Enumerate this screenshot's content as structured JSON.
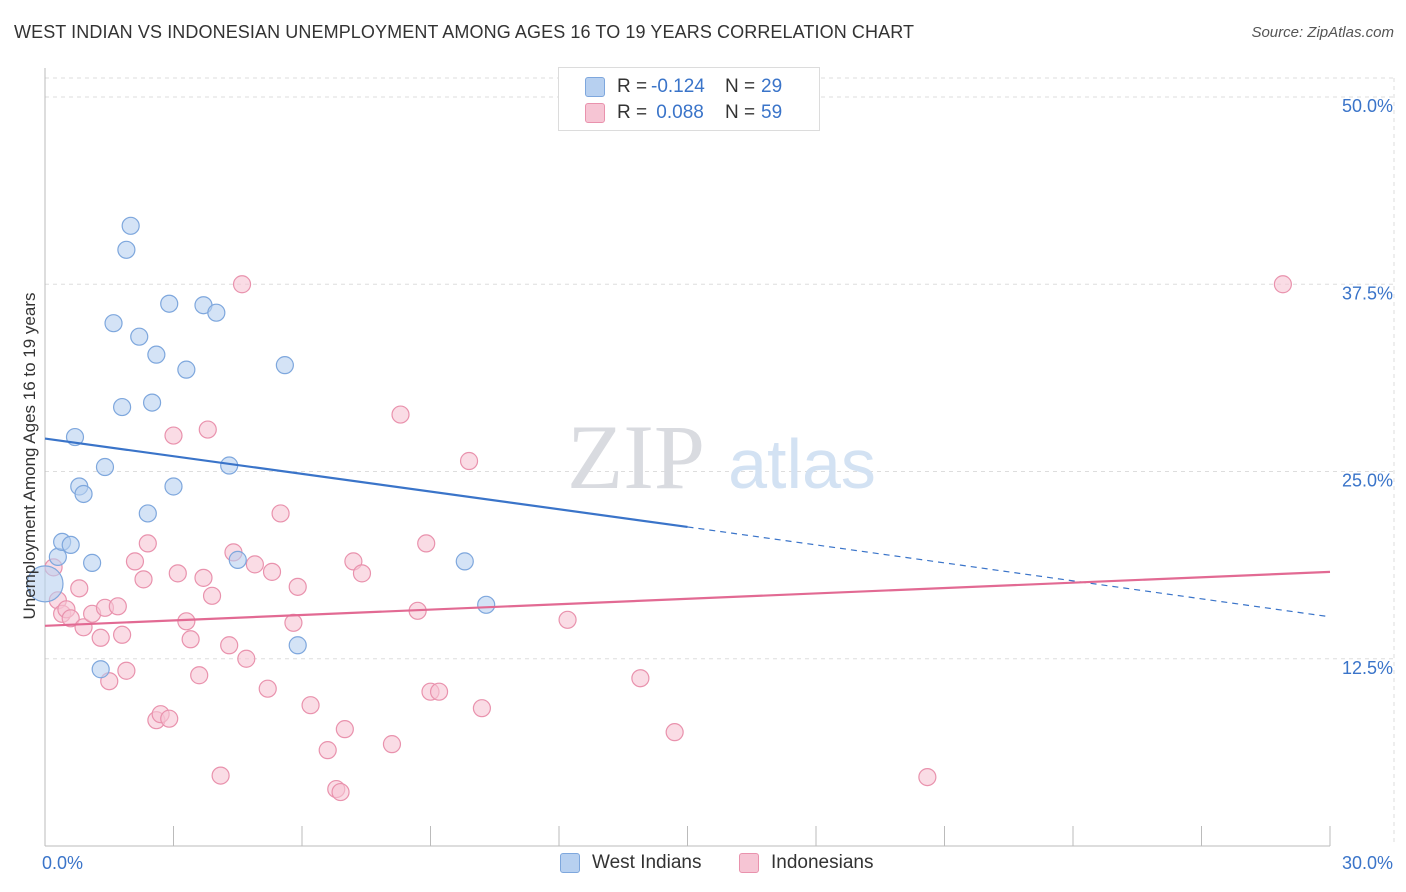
{
  "title": "WEST INDIAN VS INDONESIAN UNEMPLOYMENT AMONG AGES 16 TO 19 YEARS CORRELATION CHART",
  "source": "Source: ZipAtlas.com",
  "watermark": {
    "zip": "ZIP",
    "atlas": "atlas"
  },
  "colors": {
    "blue_fill": "#b7d0f0",
    "blue_stroke": "#7ea7dd",
    "blue_line": "#3a74c9",
    "pink_fill": "#f6c5d4",
    "pink_stroke": "#e992ad",
    "pink_line": "#e26a93",
    "tick_label": "#3a74c9",
    "grid": "#dddddd"
  },
  "legend": {
    "rows": [
      {
        "r_label": "R =",
        "r_value": "-0.124",
        "n_label": "N =",
        "n_value": "29"
      },
      {
        "r_label": "R =",
        "r_value": " 0.088",
        "n_label": "N =",
        "n_value": "59"
      }
    ]
  },
  "bottom_legend": {
    "west_indians": "West Indians",
    "indonesians": "Indonesians"
  },
  "chart_data": {
    "type": "scatter",
    "title": "WEST INDIAN VS INDONESIAN UNEMPLOYMENT AMONG AGES 16 TO 19 YEARS CORRELATION CHART",
    "ylabel": "Unemployment Among Ages 16 to 19 years",
    "xlabel": "",
    "xlim": [
      0,
      30
    ],
    "ylim": [
      0,
      50
    ],
    "x_tick_labels": [
      "0.0%",
      "30.0%"
    ],
    "y_ticks": [
      12.5,
      25.0,
      37.5,
      50.0
    ],
    "y_tick_labels": [
      "12.5%",
      "25.0%",
      "37.5%",
      "50.0%"
    ],
    "series": [
      {
        "name": "West Indians",
        "points": [
          [
            0.0,
            17.5
          ],
          [
            0.3,
            19.3
          ],
          [
            0.4,
            20.3
          ],
          [
            0.6,
            20.1
          ],
          [
            0.7,
            27.3
          ],
          [
            0.8,
            24.0
          ],
          [
            0.9,
            23.5
          ],
          [
            1.1,
            18.9
          ],
          [
            1.3,
            11.8
          ],
          [
            1.4,
            25.3
          ],
          [
            1.6,
            34.9
          ],
          [
            1.8,
            29.3
          ],
          [
            1.9,
            39.8
          ],
          [
            2.0,
            41.4
          ],
          [
            2.2,
            34.0
          ],
          [
            2.4,
            22.2
          ],
          [
            2.5,
            29.6
          ],
          [
            2.6,
            32.8
          ],
          [
            2.9,
            36.2
          ],
          [
            3.0,
            24.0
          ],
          [
            3.3,
            31.8
          ],
          [
            3.7,
            36.1
          ],
          [
            4.0,
            35.6
          ],
          [
            4.3,
            25.4
          ],
          [
            4.5,
            19.1
          ],
          [
            5.6,
            32.1
          ],
          [
            5.9,
            13.4
          ],
          [
            9.8,
            19.0
          ],
          [
            10.3,
            16.1
          ]
        ],
        "trend": {
          "x": [
            0.0,
            15.0
          ],
          "y": [
            27.2,
            21.3
          ],
          "dashed_extension": {
            "x": [
              15.0,
              30.0
            ],
            "y": [
              21.3,
              15.3
            ]
          }
        }
      },
      {
        "name": "Indonesians",
        "points": [
          [
            0.2,
            18.6
          ],
          [
            0.3,
            16.4
          ],
          [
            0.4,
            15.5
          ],
          [
            0.5,
            15.8
          ],
          [
            0.6,
            15.2
          ],
          [
            0.8,
            17.2
          ],
          [
            0.9,
            14.6
          ],
          [
            1.1,
            15.5
          ],
          [
            1.3,
            13.9
          ],
          [
            1.4,
            15.9
          ],
          [
            1.5,
            11.0
          ],
          [
            1.7,
            16.0
          ],
          [
            1.8,
            14.1
          ],
          [
            1.9,
            11.7
          ],
          [
            2.1,
            19.0
          ],
          [
            2.3,
            17.8
          ],
          [
            2.4,
            20.2
          ],
          [
            2.6,
            8.4
          ],
          [
            2.7,
            8.8
          ],
          [
            2.9,
            8.5
          ],
          [
            3.0,
            27.4
          ],
          [
            3.1,
            18.2
          ],
          [
            3.3,
            15.0
          ],
          [
            3.4,
            13.8
          ],
          [
            3.6,
            11.4
          ],
          [
            3.7,
            17.9
          ],
          [
            3.8,
            27.8
          ],
          [
            3.9,
            16.7
          ],
          [
            4.1,
            4.7
          ],
          [
            4.3,
            13.4
          ],
          [
            4.4,
            19.6
          ],
          [
            4.6,
            37.5
          ],
          [
            4.7,
            12.5
          ],
          [
            4.9,
            18.8
          ],
          [
            5.2,
            10.5
          ],
          [
            5.3,
            18.3
          ],
          [
            5.5,
            22.2
          ],
          [
            5.8,
            14.9
          ],
          [
            5.9,
            17.3
          ],
          [
            6.2,
            9.4
          ],
          [
            6.6,
            6.4
          ],
          [
            6.8,
            3.8
          ],
          [
            6.9,
            3.6
          ],
          [
            7.0,
            7.8
          ],
          [
            7.2,
            19.0
          ],
          [
            7.4,
            18.2
          ],
          [
            8.1,
            6.8
          ],
          [
            8.3,
            28.8
          ],
          [
            8.7,
            15.7
          ],
          [
            8.9,
            20.2
          ],
          [
            9.0,
            10.3
          ],
          [
            9.2,
            10.3
          ],
          [
            9.9,
            25.7
          ],
          [
            10.2,
            9.2
          ],
          [
            12.2,
            15.1
          ],
          [
            13.9,
            11.2
          ],
          [
            14.7,
            7.6
          ],
          [
            20.6,
            4.6
          ],
          [
            28.9,
            37.5
          ]
        ],
        "trend": {
          "x": [
            0.0,
            30.0
          ],
          "y": [
            14.7,
            18.3
          ]
        }
      }
    ],
    "legend": [
      {
        "series": "West Indians",
        "R": -0.124,
        "N": 29
      },
      {
        "series": "Indonesians",
        "R": 0.088,
        "N": 59
      }
    ]
  }
}
